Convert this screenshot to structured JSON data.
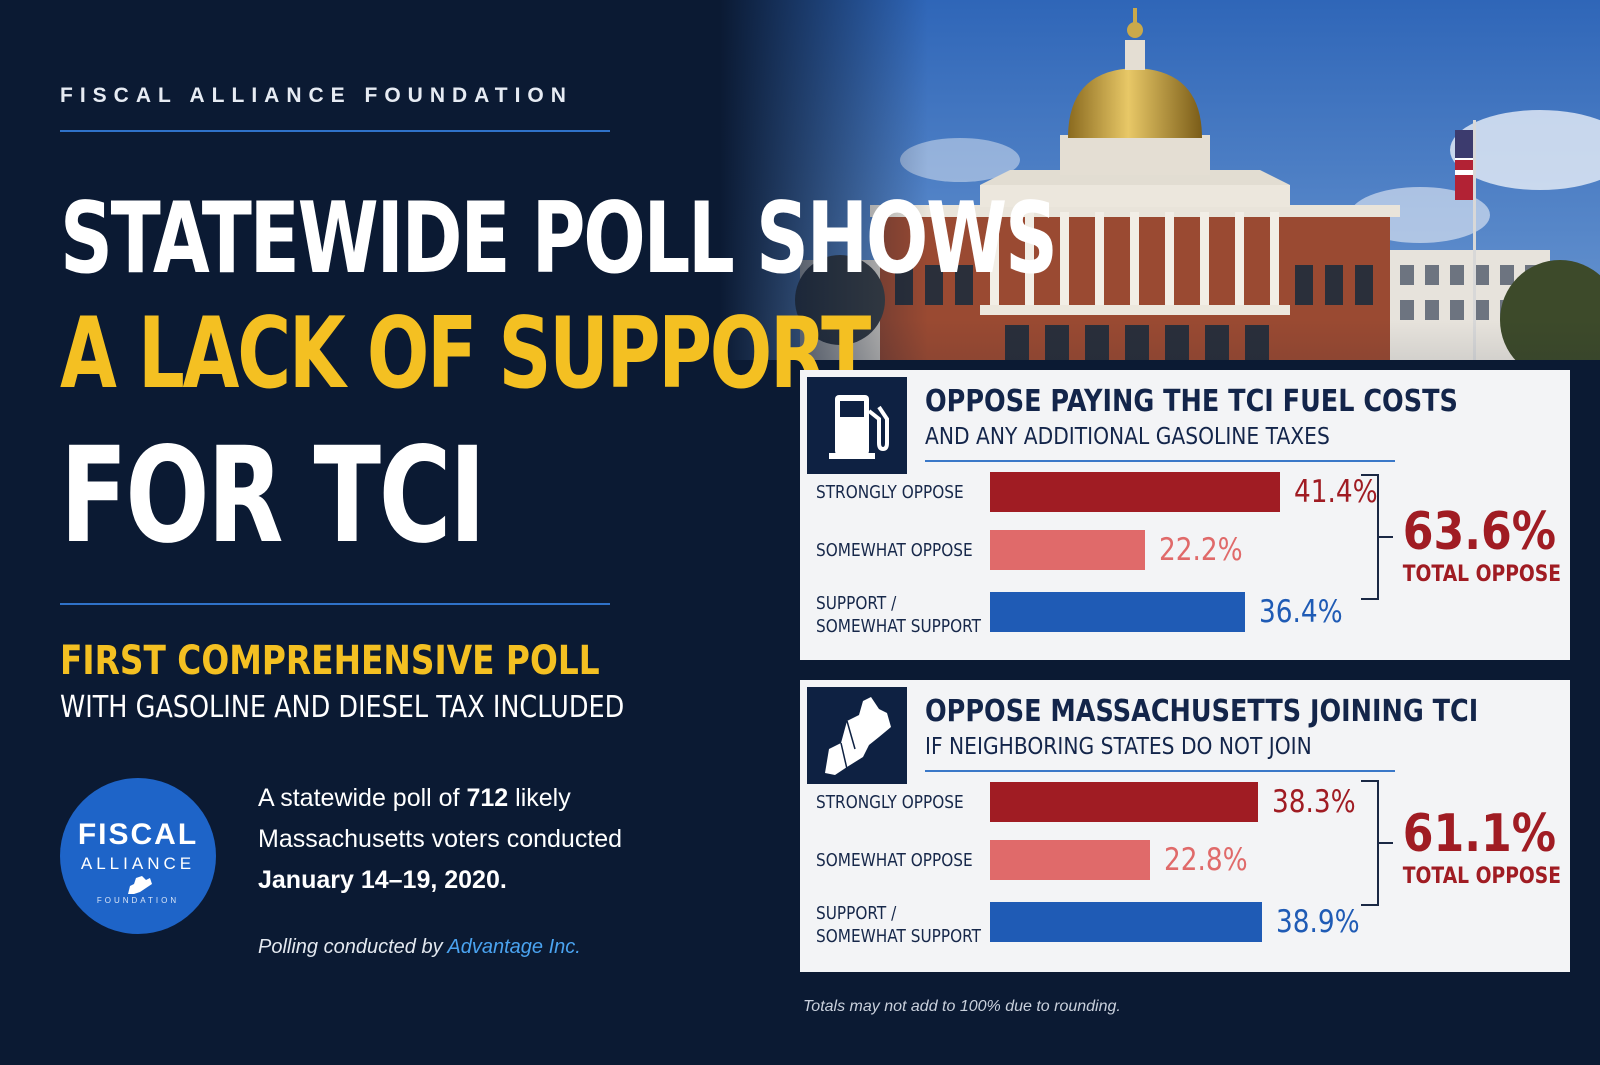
{
  "org_name": "FISCAL ALLIANCE FOUNDATION",
  "headline": {
    "line1": "STATEWIDE POLL SHOWS",
    "line2": "A LACK OF SUPPORT",
    "line3": "FOR TCI"
  },
  "subhead": {
    "line1": "FIRST COMPREHENSIVE POLL",
    "line2": "WITH GASOLINE AND DIESEL TAX INCLUDED"
  },
  "logo": {
    "word1": "FISCAL",
    "word2": "ALLIANCE",
    "word3": "FOUNDATION"
  },
  "blurb": {
    "part1": "A statewide poll of ",
    "count": "712",
    "part2": " likely Massachusetts voters conducted ",
    "dates": "January 14–19, 2020."
  },
  "credit": {
    "prefix": "Polling conducted by ",
    "firm": "Advantage Inc."
  },
  "footnote": "Totals may not add to 100% due to rounding.",
  "colors": {
    "strongly_oppose": "#a01c23",
    "somewhat_oppose": "#e06a6a",
    "support": "#1f5bb5",
    "accent_yellow": "#f4c022",
    "navy": "#0b1a33"
  },
  "icons": [
    "gas-pump-icon",
    "new-england-map-icon",
    "american-flag-icon"
  ],
  "chart_data": [
    {
      "type": "bar",
      "orientation": "horizontal",
      "title": "OPPOSE PAYING THE TCI FUEL COSTS",
      "subtitle": "AND ANY ADDITIONAL GASOLINE TAXES",
      "categories": [
        "STRONGLY OPPOSE",
        "SOMEWHAT OPPOSE",
        "SUPPORT / SOMEWHAT SUPPORT"
      ],
      "values": [
        41.4,
        22.2,
        36.4
      ],
      "value_labels": [
        "41.4%",
        "22.2%",
        "36.4%"
      ],
      "xlim": [
        0,
        100
      ],
      "total": {
        "value": "63.6%",
        "label": "TOTAL OPPOSE"
      }
    },
    {
      "type": "bar",
      "orientation": "horizontal",
      "title": "OPPOSE MASSACHUSETTS JOINING TCI",
      "subtitle": "IF NEIGHBORING STATES DO NOT JOIN",
      "categories": [
        "STRONGLY OPPOSE",
        "SOMEWHAT OPPOSE",
        "SUPPORT / SOMEWHAT SUPPORT"
      ],
      "values": [
        38.3,
        22.8,
        38.9
      ],
      "value_labels": [
        "38.3%",
        "22.8%",
        "38.9%"
      ],
      "xlim": [
        0,
        100
      ],
      "total": {
        "value": "61.1%",
        "label": "TOTAL OPPOSE"
      }
    }
  ]
}
